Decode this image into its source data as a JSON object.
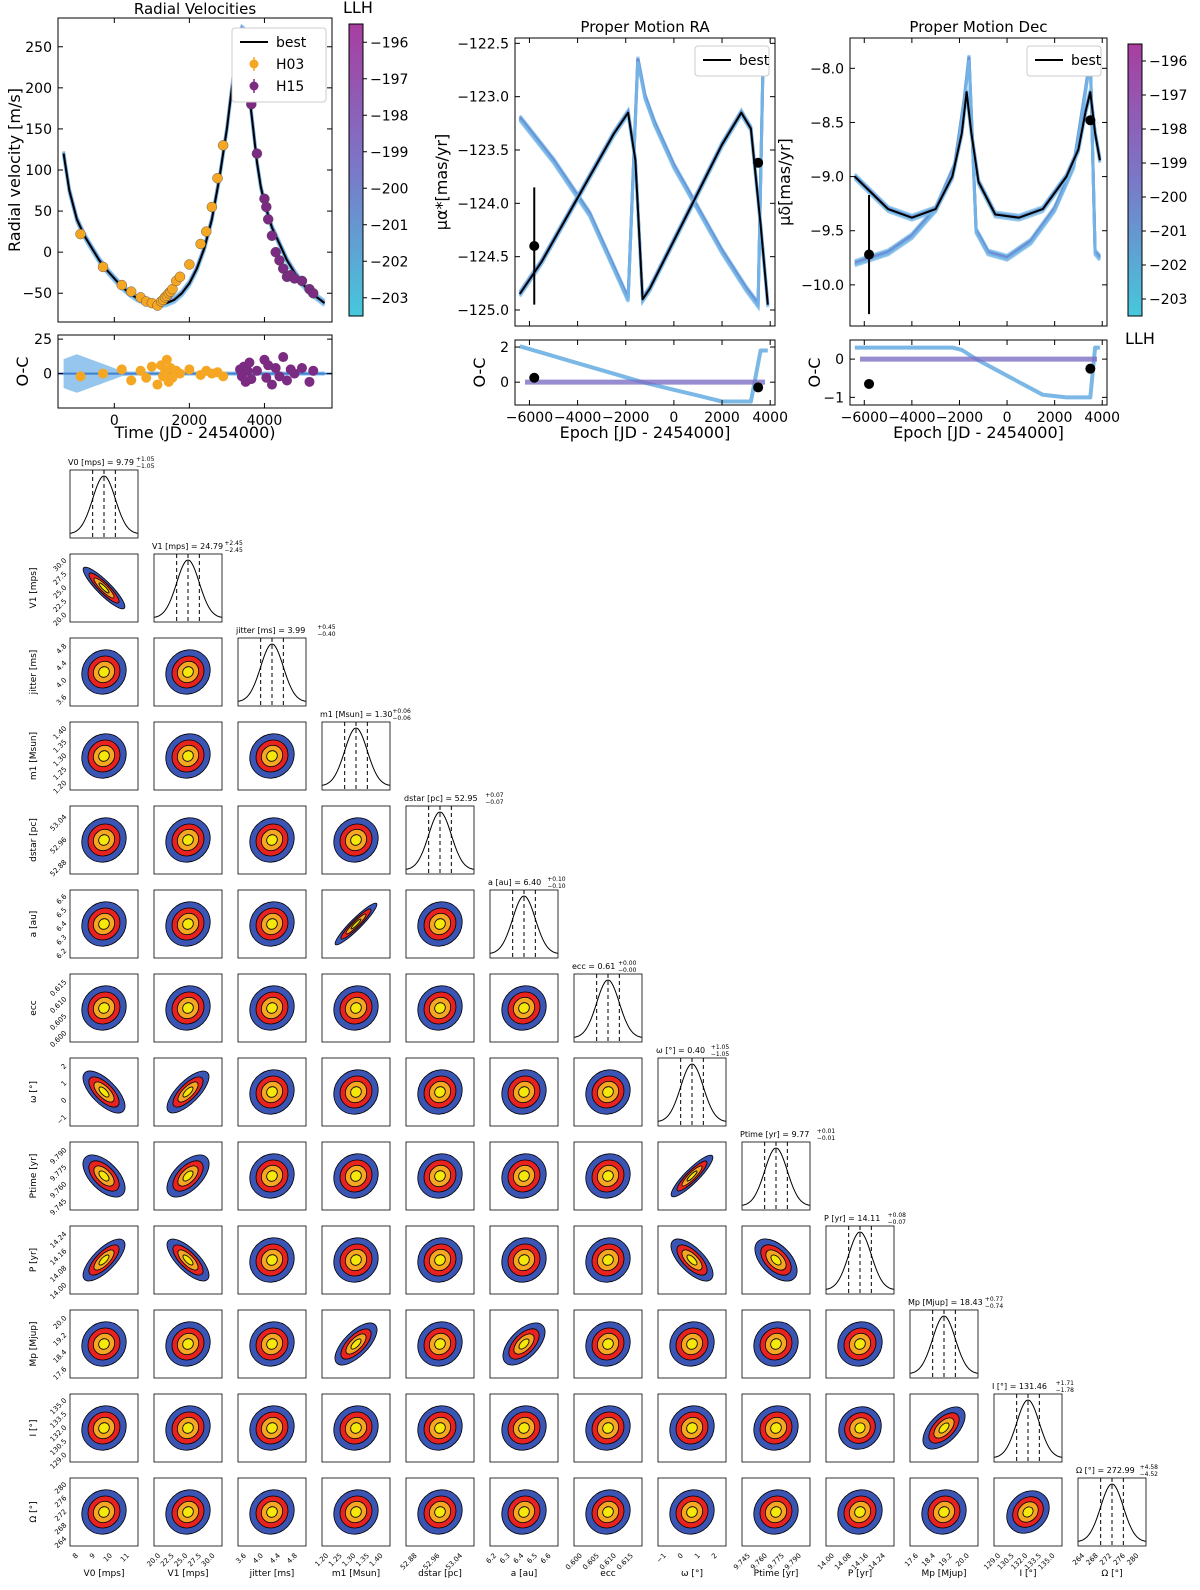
{
  "chart_data": [
    {
      "type": "scatter",
      "id": "rv",
      "title": "Radial Velocities",
      "xlabel": "Time (JD - 2454000)",
      "ylabel": "Radial velocity [m/s]",
      "resid_label": "O-C",
      "xlim": [
        -1500,
        5800
      ],
      "ylim": [
        -85,
        285
      ],
      "resid_ylim": [
        -25,
        28
      ],
      "xticks": [
        0,
        2000,
        4000
      ],
      "yticks": [
        -50,
        0,
        50,
        100,
        150,
        200,
        250
      ],
      "resid_yticks": [
        0,
        25
      ],
      "legend": [
        "best",
        "H03",
        "H15"
      ],
      "colorbar_label": "LLH",
      "colorbar_ticks": [
        -196,
        -197,
        -198,
        -199,
        -200,
        -201,
        -202,
        -203
      ],
      "series": [
        {
          "name": "H03",
          "color": "#f5a623",
          "x": [
            -900,
            -300,
            200,
            450,
            700,
            850,
            1000,
            1150,
            1250,
            1300,
            1350,
            1400,
            1450,
            1500,
            1550,
            1650,
            1750,
            2000,
            2300,
            2450,
            2600,
            2750,
            2900
          ],
          "y": [
            22,
            -18,
            -40,
            -48,
            -55,
            -60,
            -62,
            -65,
            -60,
            -58,
            -55,
            -53,
            -50,
            -48,
            -45,
            -35,
            -30,
            -15,
            10,
            25,
            55,
            90,
            130
          ],
          "resid": [
            -2,
            0,
            3,
            -5,
            2,
            -3,
            5,
            -8,
            6,
            -2,
            1,
            10,
            -6,
            4,
            -3,
            2,
            0,
            3,
            -1,
            2,
            0,
            1,
            -2
          ]
        },
        {
          "name": "H15",
          "color": "#7b2b82",
          "x": [
            3350,
            3400,
            3450,
            3500,
            3550,
            3600,
            3650,
            3800,
            4000,
            4050,
            4100,
            4200,
            4300,
            4400,
            4500,
            4600,
            4700,
            4800,
            5000,
            5200,
            5300
          ],
          "y": [
            190,
            230,
            235,
            220,
            210,
            200,
            180,
            120,
            65,
            55,
            40,
            20,
            0,
            -10,
            -20,
            -30,
            -28,
            -32,
            -35,
            -45,
            -50
          ],
          "resid": [
            3,
            -2,
            5,
            -6,
            2,
            8,
            -4,
            2,
            10,
            -3,
            6,
            -8,
            4,
            -2,
            12,
            -5,
            3,
            0,
            4,
            -6,
            2
          ]
        }
      ],
      "best_fit": {
        "name": "best",
        "x": [
          -1350,
          -1200,
          -1000,
          -800,
          -600,
          -400,
          -200,
          0,
          200,
          400,
          600,
          800,
          1000,
          1200,
          1400,
          1600,
          1800,
          2000,
          2200,
          2400,
          2600,
          2800,
          3000,
          3200,
          3300,
          3400,
          3450,
          3500,
          3550,
          3600,
          3700,
          3800,
          3900,
          4000,
          4200,
          4400,
          4600,
          4800,
          5000,
          5200,
          5400,
          5600
        ],
        "y": [
          120,
          75,
          40,
          20,
          5,
          -10,
          -22,
          -32,
          -42,
          -50,
          -56,
          -60,
          -63,
          -64,
          -62,
          -58,
          -50,
          -38,
          -20,
          5,
          40,
          90,
          150,
          225,
          255,
          272,
          270,
          250,
          220,
          190,
          150,
          110,
          80,
          60,
          30,
          10,
          -10,
          -25,
          -38,
          -48,
          -55,
          -62
        ]
      }
    },
    {
      "type": "line",
      "id": "pmra",
      "title": "Proper Motion RA",
      "xlabel": "Epoch [JD - 2454000]",
      "ylabel": "μα*[mas/yr]",
      "resid_label": "O-C",
      "xlim": [
        -6600,
        4200
      ],
      "ylim": [
        -125.15,
        -122.45
      ],
      "resid_ylim": [
        -1.3,
        2.4
      ],
      "xticks": [
        -6000,
        -4000,
        -2000,
        0,
        2000,
        4000
      ],
      "yticks": [
        -125.0,
        -124.5,
        -124.0,
        -123.5,
        -123.0,
        -122.5
      ],
      "resid_yticks": [
        0,
        2
      ],
      "legend": [
        "best"
      ],
      "points": [
        {
          "x": -5800,
          "y": -124.4,
          "err": 0.55,
          "resid": 0.25
        },
        {
          "x": 3500,
          "y": -123.62,
          "err": 0.0,
          "resid": -0.3
        }
      ],
      "best_fit": {
        "name": "best",
        "x": [
          -6400,
          -5500,
          -4500,
          -3500,
          -2500,
          -1900,
          -1600,
          -1300,
          -1000,
          0,
          1000,
          2000,
          2800,
          3200,
          3600,
          3900
        ],
        "y": [
          -124.85,
          -124.55,
          -124.15,
          -123.75,
          -123.35,
          -123.15,
          -123.6,
          -124.9,
          -124.8,
          -124.35,
          -123.9,
          -123.45,
          -123.15,
          -123.3,
          -124.2,
          -124.95
        ]
      },
      "alt_fit": {
        "x": [
          -6400,
          -5000,
          -3500,
          -2500,
          -1900,
          -1500,
          -1200,
          -800,
          0,
          1000,
          2000,
          3000,
          3500,
          3700,
          3900
        ],
        "y": [
          -123.2,
          -123.6,
          -124.1,
          -124.6,
          -124.9,
          -122.65,
          -123.0,
          -123.25,
          -123.65,
          -124.05,
          -124.45,
          -124.8,
          -124.95,
          -122.7,
          -122.7
        ]
      }
    },
    {
      "type": "line",
      "id": "pmdec",
      "title": "Proper Motion Dec",
      "xlabel": "Epoch [JD - 2454000]",
      "ylabel": "μδ[mas/yr]",
      "resid_label": "O-C",
      "xlim": [
        -6600,
        4200
      ],
      "ylim": [
        -10.38,
        -7.72
      ],
      "resid_ylim": [
        -1.2,
        0.5
      ],
      "xticks": [
        -6000,
        -4000,
        -2000,
        0,
        2000,
        4000
      ],
      "yticks": [
        -10.0,
        -9.5,
        -9.0,
        -8.5,
        -8.0
      ],
      "resid_yticks": [
        -1,
        0
      ],
      "legend": [
        "best"
      ],
      "colorbar_label": "LLH",
      "colorbar_ticks": [
        -196,
        -197,
        -198,
        -199,
        -200,
        -201,
        -202,
        -203
      ],
      "points": [
        {
          "x": -5800,
          "y": -9.72,
          "err": 0.55,
          "resid": -0.65
        },
        {
          "x": 3500,
          "y": -8.48,
          "err": 0.0,
          "resid": -0.25
        }
      ],
      "best_fit": {
        "name": "best",
        "x": [
          -6400,
          -5000,
          -4000,
          -3000,
          -2300,
          -1900,
          -1700,
          -1500,
          -1200,
          -500,
          500,
          1500,
          2500,
          3000,
          3300,
          3500,
          3700,
          3900
        ],
        "y": [
          -9.0,
          -9.3,
          -9.38,
          -9.3,
          -9.0,
          -8.6,
          -8.22,
          -8.6,
          -9.05,
          -9.35,
          -9.38,
          -9.3,
          -9.0,
          -8.75,
          -8.4,
          -8.22,
          -8.6,
          -8.85
        ]
      },
      "alt_fit": {
        "x": [
          -6400,
          -5000,
          -4000,
          -3000,
          -2200,
          -1800,
          -1600,
          -1300,
          -800,
          0,
          1000,
          2000,
          2800,
          3300,
          3500,
          3700,
          3900
        ],
        "y": [
          -9.8,
          -9.7,
          -9.55,
          -9.3,
          -8.9,
          -8.3,
          -7.9,
          -9.5,
          -9.7,
          -9.75,
          -9.6,
          -9.3,
          -8.9,
          -8.2,
          -7.9,
          -9.7,
          -9.75
        ]
      }
    },
    {
      "type": "corner",
      "id": "corner",
      "params": [
        {
          "axis": "V0 [mps]",
          "title": "V0 [mps] = 9.79",
          "up": "+1.05",
          "lo": "−1.05",
          "ticks": [
            "8",
            "9",
            "10",
            "11"
          ]
        },
        {
          "axis": "V1 [mps]",
          "title": "V1 [mps] = 24.79",
          "up": "+2.45",
          "lo": "−2.45",
          "ticks": [
            "20.0",
            "22.5",
            "25.0",
            "27.5",
            "30.0"
          ]
        },
        {
          "axis": "jitter [ms]",
          "title": "jitter [ms] = 3.99",
          "up": "+0.45",
          "lo": "−0.40",
          "ticks": [
            "3.6",
            "4.0",
            "4.4",
            "4.8"
          ]
        },
        {
          "axis": "m1 [Msun]",
          "title": "m1 [Msun] = 1.30",
          "up": "+0.06",
          "lo": "−0.06",
          "ticks": [
            "1.20",
            "1.25",
            "1.30",
            "1.35",
            "1.40"
          ]
        },
        {
          "axis": "dstar [pc]",
          "title": "dstar [pc] = 52.95",
          "up": "+0.07",
          "lo": "−0.07",
          "ticks": [
            "52.88",
            "52.96",
            "53.04"
          ]
        },
        {
          "axis": "a [au]",
          "title": "a [au] = 6.40",
          "up": "+0.10",
          "lo": "−0.10",
          "ticks": [
            "6.2",
            "6.3",
            "6.4",
            "6.5",
            "6.6"
          ]
        },
        {
          "axis": "ecc",
          "title": "ecc = 0.61",
          "up": "+0.00",
          "lo": "−0.00",
          "ticks": [
            "0.600",
            "0.605",
            "0.610",
            "0.615"
          ]
        },
        {
          "axis": "ω [°]",
          "title": "ω [°] = 0.40",
          "up": "+1.05",
          "lo": "−1.05",
          "ticks": [
            "−1",
            "0",
            "1",
            "2"
          ]
        },
        {
          "axis": "Ptime [yr]",
          "title": "Ptime [yr] = 9.77",
          "up": "+0.01",
          "lo": "−0.01",
          "ticks": [
            "9.745",
            "9.760",
            "9.775",
            "9.790"
          ]
        },
        {
          "axis": "P [yr]",
          "title": "P [yr] = 14.11",
          "up": "+0.08",
          "lo": "−0.07",
          "ticks": [
            "14.00",
            "14.08",
            "14.16",
            "14.24"
          ]
        },
        {
          "axis": "Mp [Mjup]",
          "title": "Mp [Mjup] = 18.43",
          "up": "+0.77",
          "lo": "−0.74",
          "ticks": [
            "17.6",
            "18.4",
            "19.2",
            "20.0"
          ]
        },
        {
          "axis": "I [°]",
          "title": "I [°] = 131.46",
          "up": "+1.71",
          "lo": "−1.78",
          "ticks": [
            "129.0",
            "130.5",
            "132.0",
            "133.5",
            "135.0"
          ]
        },
        {
          "axis": "Ω [°]",
          "title": "Ω [°] = 272.99",
          "up": "+4.58",
          "lo": "−4.52",
          "ticks": [
            "264",
            "268",
            "272",
            "276",
            "280"
          ]
        }
      ],
      "correlations": [
        {
          "i": 1,
          "j": 0,
          "rho": -0.9
        },
        {
          "i": 5,
          "j": 3,
          "rho": 0.95
        },
        {
          "i": 7,
          "j": 0,
          "rho": -0.7
        },
        {
          "i": 7,
          "j": 1,
          "rho": 0.75
        },
        {
          "i": 8,
          "j": 0,
          "rho": -0.6
        },
        {
          "i": 8,
          "j": 1,
          "rho": 0.6
        },
        {
          "i": 8,
          "j": 7,
          "rho": 0.9
        },
        {
          "i": 9,
          "j": 0,
          "rho": 0.75
        },
        {
          "i": 9,
          "j": 1,
          "rho": -0.75
        },
        {
          "i": 9,
          "j": 7,
          "rho": -0.7
        },
        {
          "i": 9,
          "j": 8,
          "rho": -0.55
        },
        {
          "i": 10,
          "j": 3,
          "rho": 0.7
        },
        {
          "i": 10,
          "j": 5,
          "rho": 0.6
        },
        {
          "i": 11,
          "j": 10,
          "rho": 0.6
        },
        {
          "i": 11,
          "j": 9,
          "rho": 0.15
        },
        {
          "i": 12,
          "j": 11,
          "rho": 0.25
        }
      ],
      "contour_colors": [
        "#3a55b4",
        "#e8231f",
        "#f5a623",
        "#f5e80a"
      ]
    }
  ]
}
